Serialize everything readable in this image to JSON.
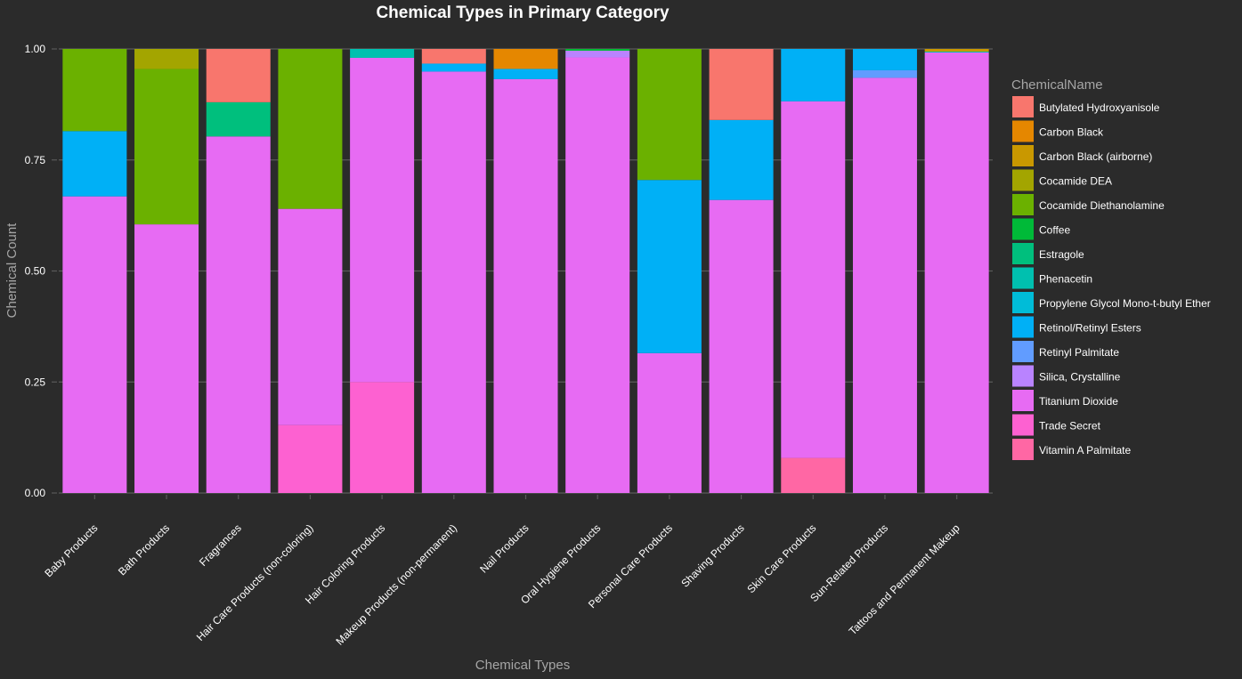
{
  "chart_data": {
    "type": "bar",
    "stacked": "fill",
    "title": "Chemical Types in Primary Category",
    "xlabel": "Chemical Types",
    "ylabel": "Chemical Count",
    "ylim": [
      0,
      1
    ],
    "yticks": [
      "0.00",
      "0.25",
      "0.50",
      "0.75",
      "1.00"
    ],
    "grid": true,
    "legend_title": "ChemicalName",
    "legend_position": "right",
    "categories": [
      "Baby Products",
      "Bath Products",
      "Fragrances",
      "Hair Care Products (non-coloring)",
      "Hair Coloring Products",
      "Makeup Products (non-permanent)",
      "Nail Products",
      "Oral Hygiene Products",
      "Personal Care Products",
      "Shaving Products",
      "Skin Care Products",
      "Sun-Related Products",
      "Tattoos and Permanent Makeup"
    ],
    "series": [
      {
        "name": "Butylated Hydroxyanisole",
        "color": "#F8766D",
        "values": [
          0,
          0,
          0.12,
          0,
          0,
          0.033,
          0,
          0,
          0,
          0.16,
          0,
          0,
          0
        ]
      },
      {
        "name": "Carbon Black",
        "color": "#E58700",
        "values": [
          0,
          0,
          0,
          0,
          0,
          0,
          0.045,
          0,
          0,
          0,
          0,
          0,
          0
        ]
      },
      {
        "name": "Carbon Black (airborne)",
        "color": "#C99800",
        "values": [
          0,
          0,
          0,
          0,
          0,
          0,
          0,
          0,
          0,
          0,
          0,
          0,
          0.006
        ]
      },
      {
        "name": "Cocamide DEA",
        "color": "#A3A500",
        "values": [
          0,
          0.045,
          0,
          0,
          0,
          0,
          0,
          0,
          0,
          0,
          0,
          0,
          0
        ]
      },
      {
        "name": "Cocamide Diethanolamine",
        "color": "#6BB100",
        "values": [
          0.185,
          0.35,
          0,
          0.36,
          0,
          0,
          0,
          0,
          0.295,
          0,
          0,
          0,
          0
        ]
      },
      {
        "name": "Coffee",
        "color": "#00BA38",
        "values": [
          0,
          0,
          0,
          0,
          0,
          0,
          0,
          0.004,
          0,
          0,
          0,
          0,
          0
        ]
      },
      {
        "name": "Estragole",
        "color": "#00BF7D",
        "values": [
          0,
          0,
          0.077,
          0,
          0,
          0,
          0,
          0,
          0,
          0,
          0,
          0,
          0
        ]
      },
      {
        "name": "Phenacetin",
        "color": "#00C0AF",
        "values": [
          0,
          0,
          0,
          0,
          0.02,
          0,
          0,
          0,
          0,
          0,
          0,
          0,
          0.002
        ]
      },
      {
        "name": "Propylene Glycol Mono-t-butyl Ether",
        "color": "#00BCD8",
        "values": [
          0,
          0,
          0,
          0,
          0,
          0,
          0,
          0,
          0,
          0,
          0,
          0,
          0
        ]
      },
      {
        "name": "Retinol/Retinyl Esters",
        "color": "#00B0F6",
        "values": [
          0.147,
          0,
          0,
          0,
          0,
          0.018,
          0.023,
          0,
          0.39,
          0.18,
          0.118,
          0.048,
          0
        ]
      },
      {
        "name": "Retinyl Palmitate",
        "color": "#619CFF",
        "values": [
          0,
          0,
          0,
          0,
          0,
          0,
          0,
          0,
          0,
          0,
          0,
          0.017,
          0
        ]
      },
      {
        "name": "Silica, Crystalline",
        "color": "#B983FF",
        "values": [
          0,
          0,
          0,
          0,
          0,
          0,
          0,
          0.015,
          0,
          0,
          0,
          0,
          0
        ]
      },
      {
        "name": "Titanium Dioxide",
        "color": "#E76BF3",
        "values": [
          0.668,
          0.605,
          0.803,
          0.487,
          0.73,
          0.949,
          0.932,
          0.981,
          0.315,
          0.66,
          0.803,
          0.935,
          0.992
        ]
      },
      {
        "name": "Trade Secret",
        "color": "#FD61D1",
        "values": [
          0,
          0,
          0,
          0.153,
          0.25,
          0,
          0,
          0,
          0,
          0,
          0,
          0,
          0
        ]
      },
      {
        "name": "Vitamin A Palmitate",
        "color": "#FF67A4",
        "values": [
          0,
          0,
          0,
          0,
          0,
          0,
          0,
          0,
          0,
          0,
          0.079,
          0,
          0
        ]
      }
    ]
  },
  "colors": {
    "background": "#2b2b2b",
    "gridline": "#5a5a5a",
    "axis_text": "#ffffff",
    "axis_title": "#a6a6a6"
  }
}
